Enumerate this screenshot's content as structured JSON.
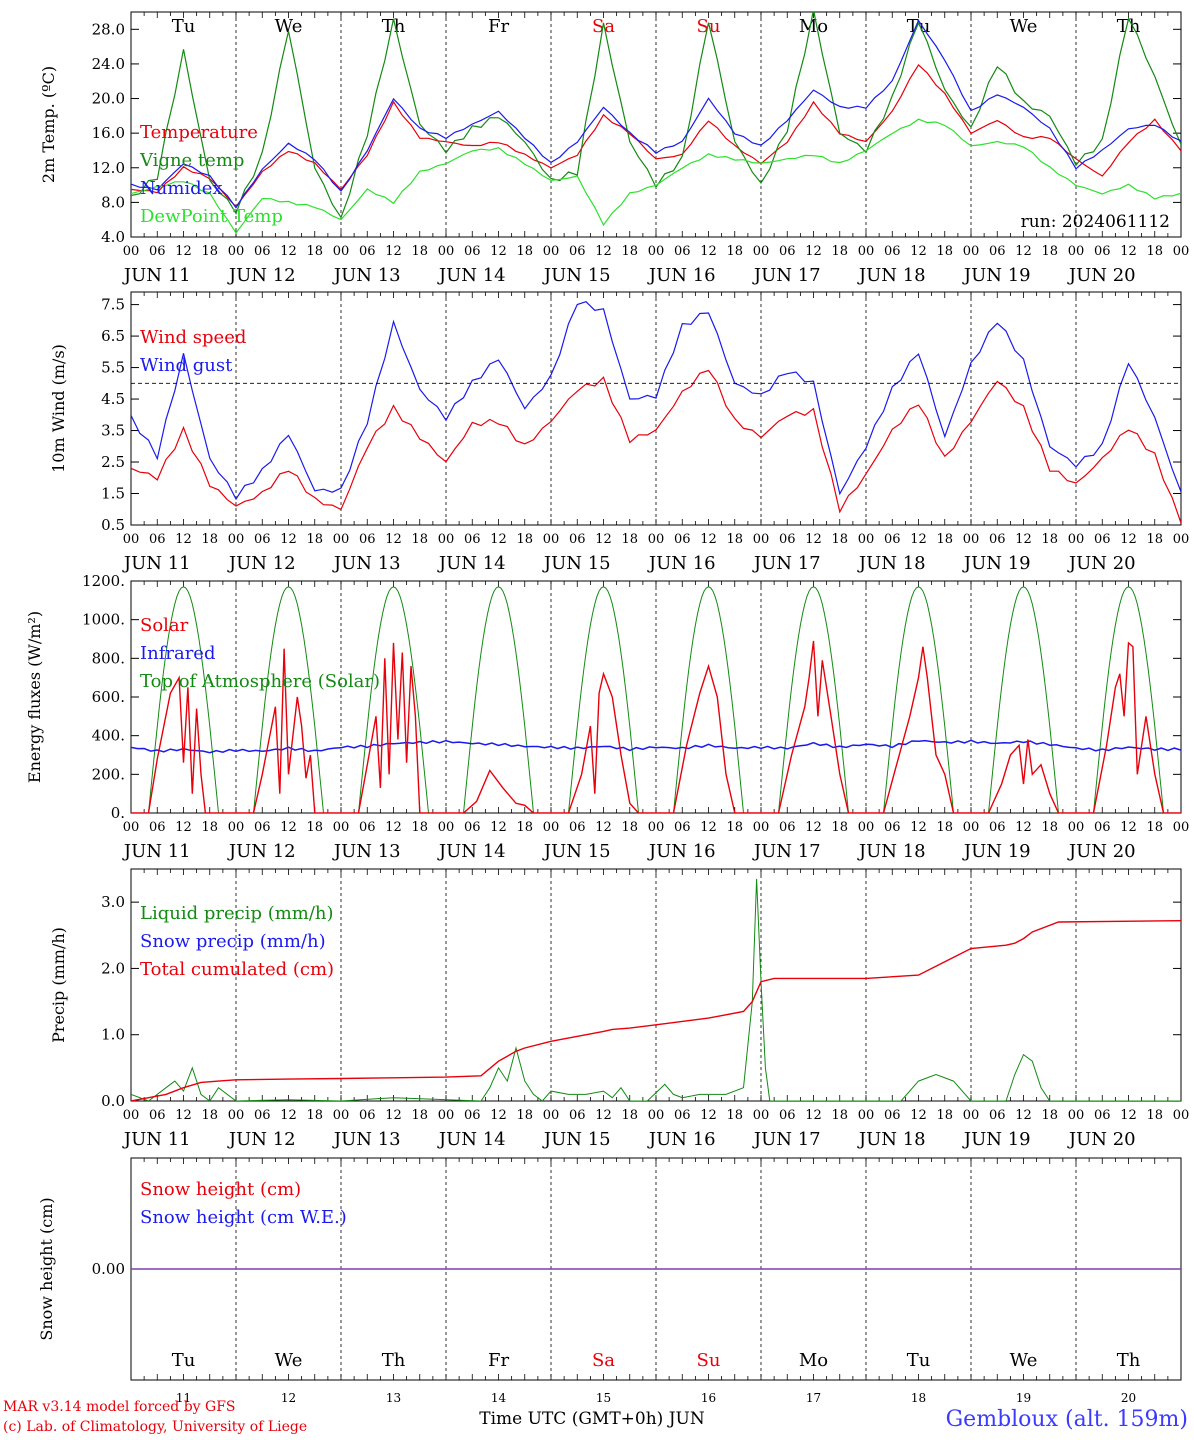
{
  "meteogram": {
    "run_label": "run: 2024061112",
    "days_short": [
      "Tu",
      "We",
      "Th",
      "Fr",
      "Sa",
      "Su",
      "Mo",
      "Tu",
      "We",
      "Th"
    ],
    "weekend_days": [
      "Sa",
      "Su"
    ],
    "date_labels": [
      "JUN 11",
      "JUN 12",
      "JUN 13",
      "JUN 14",
      "JUN 15",
      "JUN 16",
      "JUN 17",
      "JUN 18",
      "JUN 19",
      "JUN 20"
    ],
    "hour_ticks": [
      "00",
      "06",
      "12",
      "18"
    ],
    "final_tick": "00",
    "footer": {
      "model_line": "MAR v3.14 model forced by GFS",
      "copyright_line": "(c) Lab. of Climatology, University of Liege",
      "time_axis": "Time UTC (GMT+0h) JUN",
      "station": "Gembloux (alt. 159m)",
      "day_numbers": [
        "11",
        "12",
        "13",
        "14",
        "15",
        "16",
        "17",
        "18",
        "19",
        "20"
      ]
    },
    "colors": {
      "red": "#e8000b",
      "green": "#138a13",
      "blue": "#1a1aee",
      "lightgreen": "#2ee02e",
      "purple": "#7a3fb0",
      "weekend": "#e8000b"
    }
  },
  "chart_data": [
    {
      "type": "line",
      "ylabel": "2m Temp. (ºC)",
      "ylim": [
        4.0,
        30.0
      ],
      "yticks": [
        "4.0",
        "8.0",
        "12.0",
        "16.0",
        "20.0",
        "24.0",
        "28.0"
      ],
      "x_unit": "hours since 2024-06-11 00 UTC",
      "x": [
        0,
        6,
        12,
        18,
        24,
        30,
        36,
        42,
        48,
        54,
        60,
        66,
        72,
        78,
        84,
        90,
        96,
        102,
        108,
        114,
        120,
        126,
        132,
        138,
        144,
        150,
        156,
        162,
        168,
        174,
        180,
        186,
        192,
        198,
        204,
        210,
        216,
        222,
        228,
        234,
        240
      ],
      "legend_placement": "upper-left",
      "series": [
        {
          "name": "Temperature",
          "color": "red",
          "values": [
            9.5,
            9.2,
            12.0,
            10.8,
            7.5,
            11.5,
            14.0,
            12.5,
            9.5,
            13.5,
            19.5,
            15.5,
            15.0,
            14.5,
            15.0,
            13.5,
            12.0,
            13.5,
            18.0,
            16.0,
            13.0,
            13.5,
            17.5,
            14.5,
            12.5,
            15.0,
            19.5,
            16.0,
            15.0,
            18.5,
            24.0,
            20.5,
            16.0,
            17.5,
            15.5,
            15.5,
            13.0,
            11.0,
            15.0,
            17.5,
            14.0
          ]
        },
        {
          "name": "Vigne temp",
          "color": "green",
          "values": [
            8.5,
            11.0,
            25.5,
            10.5,
            7.0,
            13.5,
            28.0,
            12.0,
            6.0,
            16.0,
            29.0,
            17.0,
            14.0,
            16.5,
            18.0,
            15.0,
            10.5,
            11.5,
            28.5,
            15.0,
            10.0,
            13.0,
            29.0,
            15.0,
            10.0,
            16.5,
            30.0,
            16.0,
            14.0,
            20.0,
            29.0,
            21.0,
            16.5,
            24.0,
            19.5,
            18.0,
            12.5,
            15.0,
            29.5,
            22.5,
            14.5
          ]
        },
        {
          "name": "Numidex",
          "color": "blue",
          "values": [
            10.0,
            9.5,
            12.5,
            11.0,
            7.5,
            11.8,
            14.8,
            13.0,
            9.2,
            14.0,
            20.0,
            16.5,
            15.5,
            17.0,
            18.5,
            15.5,
            12.5,
            15.0,
            19.0,
            16.0,
            13.8,
            15.0,
            20.0,
            16.0,
            14.5,
            17.5,
            21.0,
            19.0,
            19.0,
            22.0,
            29.0,
            24.5,
            18.5,
            20.5,
            19.0,
            16.5,
            12.0,
            14.0,
            16.5,
            17.0,
            15.0
          ]
        },
        {
          "name": "DewPoint Temp",
          "color": "lightgreen",
          "values": [
            9.0,
            9.8,
            10.5,
            9.0,
            4.5,
            8.5,
            8.0,
            7.5,
            6.0,
            9.5,
            8.0,
            11.5,
            12.5,
            14.0,
            14.2,
            12.5,
            10.5,
            11.0,
            5.5,
            9.0,
            10.0,
            12.0,
            13.5,
            13.0,
            12.5,
            13.0,
            13.5,
            12.5,
            14.0,
            16.0,
            17.5,
            17.0,
            14.5,
            15.0,
            14.5,
            12.0,
            10.0,
            9.0,
            10.0,
            8.5,
            9.0
          ]
        }
      ],
      "grid": "vertical dashed day separators"
    },
    {
      "type": "line",
      "ylabel": "10m Wind (m/s)",
      "ylim": [
        0.5,
        7.9
      ],
      "yticks": [
        "0.5",
        "1.5",
        "2.5",
        "3.5",
        "4.5",
        "5.5",
        "6.5",
        "7.5"
      ],
      "reference_line": 5.0,
      "x_unit": "hours since 2024-06-11 00 UTC",
      "x": [
        0,
        6,
        12,
        18,
        24,
        30,
        36,
        42,
        48,
        54,
        60,
        66,
        72,
        78,
        84,
        90,
        96,
        102,
        108,
        114,
        120,
        126,
        132,
        138,
        144,
        150,
        156,
        162,
        168,
        174,
        180,
        186,
        192,
        198,
        204,
        210,
        216,
        222,
        228,
        234,
        240
      ],
      "series": [
        {
          "name": "Wind speed",
          "color": "red",
          "values": [
            2.3,
            2.0,
            3.5,
            1.8,
            1.1,
            1.5,
            2.3,
            1.3,
            1.0,
            3.0,
            4.2,
            3.3,
            2.5,
            3.7,
            3.8,
            3.0,
            3.8,
            4.8,
            5.1,
            3.2,
            3.5,
            4.7,
            5.5,
            3.8,
            3.3,
            4.0,
            4.1,
            1.0,
            2.1,
            3.5,
            4.4,
            2.6,
            3.8,
            5.1,
            4.2,
            2.3,
            1.8,
            2.6,
            3.6,
            2.7,
            0.6
          ]
        },
        {
          "name": "Wind gust",
          "color": "blue",
          "values": [
            3.9,
            2.7,
            5.9,
            2.6,
            1.4,
            2.2,
            3.4,
            1.6,
            1.6,
            3.8,
            6.9,
            4.8,
            3.9,
            5.0,
            5.8,
            4.2,
            5.2,
            7.6,
            7.3,
            4.5,
            4.6,
            6.8,
            7.3,
            5.0,
            4.6,
            5.4,
            5.0,
            1.5,
            3.0,
            4.8,
            6.0,
            3.3,
            5.6,
            7.0,
            5.7,
            3.0,
            2.4,
            3.0,
            5.7,
            3.9,
            1.5
          ]
        }
      ],
      "grid": "vertical dashed day separators"
    },
    {
      "type": "line",
      "ylabel": "Energy fluxes (W/m²)",
      "ylim": [
        0,
        1200
      ],
      "yticks": [
        "0.",
        "200.",
        "400.",
        "600.",
        "800.",
        "1000.",
        "1200."
      ],
      "x_unit": "hours since 2024-06-11 00 UTC",
      "toa_peak": 1170,
      "toa_sunrise_hour": 4,
      "toa_sunset_hour": 20,
      "series": [
        {
          "name": "Solar",
          "color": "red",
          "x": [
            0,
            4,
            6,
            9,
            11,
            12,
            13,
            14,
            15,
            16,
            17,
            18,
            20,
            24,
            28,
            30,
            33,
            34,
            35,
            36,
            37,
            38,
            39,
            40,
            41,
            42,
            44,
            48,
            52,
            54,
            56,
            57,
            58,
            59,
            60,
            61,
            62,
            63,
            64,
            65,
            66,
            68,
            72,
            76,
            79,
            82,
            85,
            88,
            90,
            92,
            96,
            100,
            103,
            105,
            106,
            107,
            108,
            110,
            112,
            114,
            116,
            120,
            124,
            127,
            130,
            132,
            134,
            136,
            138,
            140,
            144,
            148,
            151,
            154,
            155,
            156,
            157,
            158,
            160,
            162,
            164,
            168,
            172,
            175,
            178,
            180,
            181,
            182,
            183,
            184,
            186,
            188,
            192,
            196,
            199,
            201,
            203,
            204,
            205,
            206,
            208,
            210,
            212,
            216,
            220,
            223,
            225,
            226,
            227,
            228,
            229,
            230,
            232,
            234,
            236,
            240
          ],
          "values": [
            0,
            0,
            280,
            620,
            700,
            260,
            650,
            100,
            540,
            200,
            0,
            0,
            0,
            0,
            0,
            200,
            550,
            100,
            850,
            200,
            400,
            600,
            450,
            180,
            300,
            0,
            0,
            0,
            0,
            250,
            500,
            130,
            800,
            200,
            880,
            380,
            830,
            260,
            760,
            500,
            0,
            0,
            0,
            0,
            60,
            220,
            130,
            50,
            40,
            0,
            0,
            0,
            200,
            450,
            100,
            620,
            720,
            600,
            300,
            50,
            0,
            0,
            0,
            350,
            620,
            760,
            600,
            200,
            0,
            0,
            0,
            0,
            300,
            550,
            700,
            890,
            500,
            790,
            500,
            200,
            0,
            0,
            0,
            250,
            500,
            700,
            860,
            700,
            500,
            300,
            200,
            0,
            0,
            0,
            150,
            300,
            350,
            150,
            380,
            200,
            250,
            100,
            0,
            0,
            0,
            350,
            650,
            720,
            500,
            880,
            860,
            200,
            500,
            200,
            0,
            0
          ]
        },
        {
          "name": "Infrared",
          "color": "blue",
          "baseline": [
            340,
            320,
            330,
            315,
            325,
            320,
            335,
            320,
            340,
            345,
            360,
            365,
            370,
            360,
            355,
            345,
            340,
            335,
            345,
            330,
            340,
            335,
            350,
            335,
            340,
            335,
            360,
            340,
            355,
            345,
            375,
            365,
            370,
            360,
            370,
            355,
            335,
            325,
            340,
            330,
            330
          ]
        },
        {
          "name": "Top of Atmosphere (Solar)",
          "color": "green"
        }
      ],
      "grid": "vertical dashed day separators"
    },
    {
      "type": "line",
      "ylabel": "Precip (mm/h)",
      "ylim": [
        0.0,
        3.5
      ],
      "yticks": [
        "0.0",
        "1.0",
        "2.0",
        "3.0"
      ],
      "x_unit": "hours since 2024-06-11 00 UTC",
      "series": [
        {
          "name": "Liquid precip (mm/h)",
          "color": "green",
          "x": [
            0,
            4,
            8,
            10,
            12,
            14,
            16,
            18,
            20,
            24,
            36,
            48,
            60,
            80,
            82,
            84,
            86,
            88,
            90,
            92,
            94,
            96,
            100,
            104,
            108,
            110,
            112,
            114,
            118,
            122,
            124,
            126,
            130,
            136,
            140,
            142,
            143,
            144,
            145,
            146,
            148,
            150,
            160,
            170,
            176,
            180,
            184,
            188,
            192,
            200,
            202,
            204,
            206,
            208,
            210,
            220,
            240
          ],
          "values": [
            0.1,
            0.0,
            0.2,
            0.3,
            0.15,
            0.5,
            0.1,
            0.0,
            0.2,
            0.0,
            0.02,
            0.0,
            0.05,
            0.0,
            0.2,
            0.5,
            0.3,
            0.8,
            0.3,
            0.1,
            0.0,
            0.15,
            0.1,
            0.1,
            0.15,
            0.05,
            0.2,
            0.0,
            0.0,
            0.25,
            0.1,
            0.05,
            0.1,
            0.1,
            0.2,
            1.5,
            3.35,
            1.8,
            0.5,
            0.0,
            0.0,
            0.0,
            0.0,
            0.0,
            0.0,
            0.3,
            0.4,
            0.3,
            0.0,
            0.0,
            0.4,
            0.7,
            0.6,
            0.2,
            0.0,
            0.0,
            0.0
          ]
        },
        {
          "name": "Snow precip (mm/h)",
          "color": "blue",
          "values": []
        },
        {
          "name": "Total cumulated (cm)",
          "color": "red",
          "x": [
            0,
            4,
            8,
            12,
            16,
            20,
            24,
            36,
            48,
            60,
            72,
            80,
            84,
            88,
            90,
            96,
            108,
            110,
            114,
            120,
            132,
            140,
            142,
            144,
            147,
            150,
            156,
            168,
            180,
            186,
            192,
            200,
            202,
            204,
            206,
            212,
            240
          ],
          "values": [
            0.0,
            0.05,
            0.1,
            0.2,
            0.28,
            0.3,
            0.32,
            0.33,
            0.34,
            0.35,
            0.36,
            0.38,
            0.6,
            0.75,
            0.8,
            0.9,
            1.05,
            1.08,
            1.1,
            1.15,
            1.25,
            1.35,
            1.5,
            1.8,
            1.85,
            1.85,
            1.85,
            1.85,
            1.9,
            2.1,
            2.3,
            2.35,
            2.38,
            2.45,
            2.55,
            2.7,
            2.72
          ]
        }
      ],
      "grid": "vertical dashed day separators"
    },
    {
      "type": "line",
      "ylabel": "Snow height (cm)",
      "ylim": [
        -1,
        1
      ],
      "yticks": [
        "0.00"
      ],
      "series": [
        {
          "name": "Snow height (cm)",
          "color": "red",
          "values": [
            0,
            0
          ]
        },
        {
          "name": "Snow height (cm W.E.)",
          "color": "blue",
          "values": [
            0,
            0
          ]
        }
      ],
      "grid": "vertical dashed day separators"
    }
  ]
}
